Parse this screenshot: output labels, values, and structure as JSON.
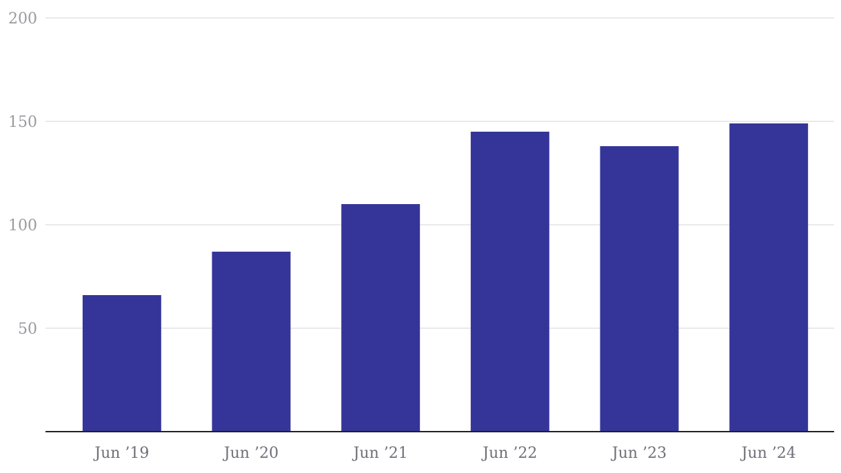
{
  "chart_data": {
    "type": "bar",
    "categories": [
      "Jun ’19",
      "Jun ’20",
      "Jun ’21",
      "Jun ’22",
      "Jun ’23",
      "Jun ’24"
    ],
    "series": [
      {
        "values": [
          66,
          87,
          110,
          145,
          138,
          149
        ]
      }
    ],
    "yticks": [
      50,
      100,
      150,
      200
    ],
    "ylim": [
      0,
      200
    ],
    "grid": true,
    "legend": "none",
    "title": "",
    "xlabel": "",
    "ylabel": "",
    "colors": {
      "bar": "#353599"
    }
  }
}
